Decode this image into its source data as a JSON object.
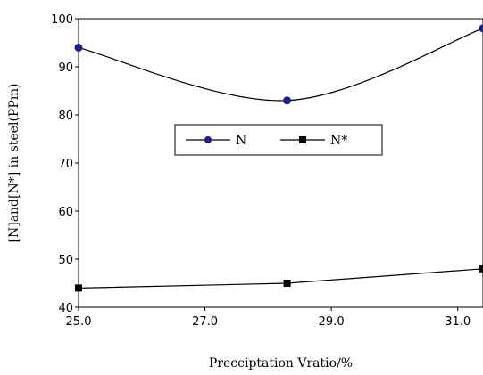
{
  "chart_data": {
    "type": "line",
    "xlabel": "Precciptation Vratio/%",
    "ylabel": "[N]and[N*] in steel(PPm)",
    "xlim": [
      25.0,
      31.4
    ],
    "ylim": [
      40,
      100
    ],
    "x_ticks": [
      "25.0",
      "27.0",
      "29.0",
      "31.0"
    ],
    "y_ticks": [
      "40",
      "50",
      "60",
      "70",
      "80",
      "90",
      "100"
    ],
    "grid": false,
    "legend_position": "center",
    "series": [
      {
        "name": "N",
        "color": "#1f1f8f",
        "marker": "circle",
        "smooth": true,
        "points": [
          [
            25.0,
            94
          ],
          [
            28.3,
            83
          ],
          [
            31.4,
            98
          ]
        ]
      },
      {
        "name": "N*",
        "color": "#000000",
        "marker": "square",
        "smooth": false,
        "points": [
          [
            25.0,
            44
          ],
          [
            28.3,
            45
          ],
          [
            31.4,
            48
          ]
        ]
      }
    ]
  }
}
